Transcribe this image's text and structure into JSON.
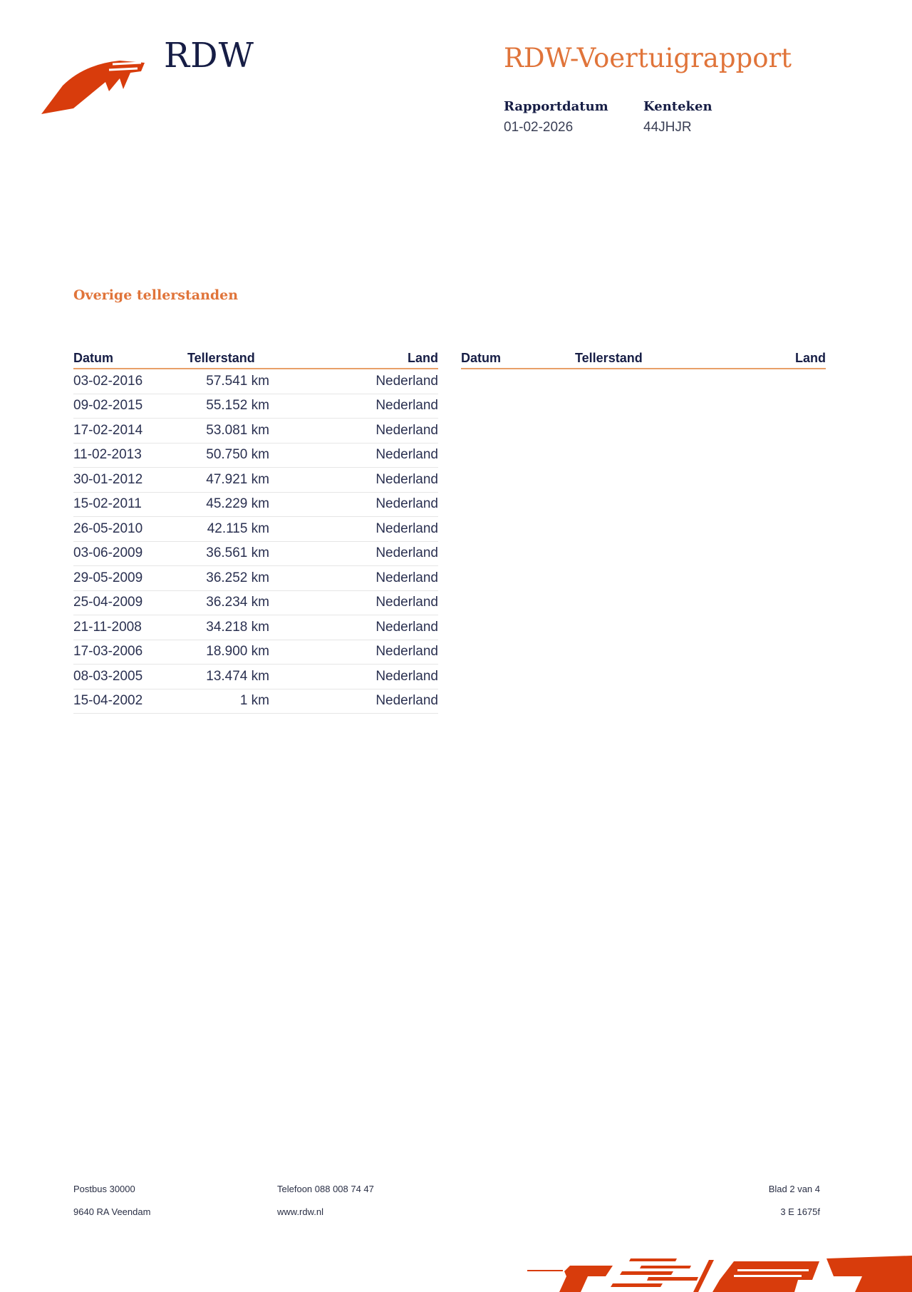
{
  "header": {
    "logo_text": "RDW",
    "title": "RDW-Voertuigrapport",
    "meta": [
      {
        "label": "Rapportdatum",
        "value": "01-02-2026"
      },
      {
        "label": "Kenteken",
        "value": "44JHJR"
      }
    ]
  },
  "section": {
    "title": "Overige tellerstanden",
    "columns": [
      "Datum",
      "Tellerstand",
      "Land"
    ],
    "rows": [
      [
        "03-02-2016",
        "57.541 km",
        "Nederland"
      ],
      [
        "09-02-2015",
        "55.152 km",
        "Nederland"
      ],
      [
        "17-02-2014",
        "53.081 km",
        "Nederland"
      ],
      [
        "11-02-2013",
        "50.750 km",
        "Nederland"
      ],
      [
        "30-01-2012",
        "47.921 km",
        "Nederland"
      ],
      [
        "15-02-2011",
        "45.229 km",
        "Nederland"
      ],
      [
        "26-05-2010",
        "42.115 km",
        "Nederland"
      ],
      [
        "03-06-2009",
        "36.561 km",
        "Nederland"
      ],
      [
        "29-05-2009",
        "36.252 km",
        "Nederland"
      ],
      [
        "25-04-2009",
        "36.234 km",
        "Nederland"
      ],
      [
        "21-11-2008",
        "34.218 km",
        "Nederland"
      ],
      [
        "17-03-2006",
        "18.900 km",
        "Nederland"
      ],
      [
        "08-03-2005",
        "13.474 km",
        "Nederland"
      ],
      [
        "15-04-2002",
        "1 km",
        "Nederland"
      ]
    ]
  },
  "footer": {
    "address1": "Postbus 30000",
    "address2": "9640 RA Veendam",
    "phone": "Telefoon 088 008 74 47",
    "website": "www.rdw.nl",
    "page": "Blad 2 van 4",
    "code": "3 E 1675f"
  },
  "colors": {
    "brand_orange": "#d83c0c",
    "title_orange": "#e0743a",
    "navy": "#161d45"
  }
}
